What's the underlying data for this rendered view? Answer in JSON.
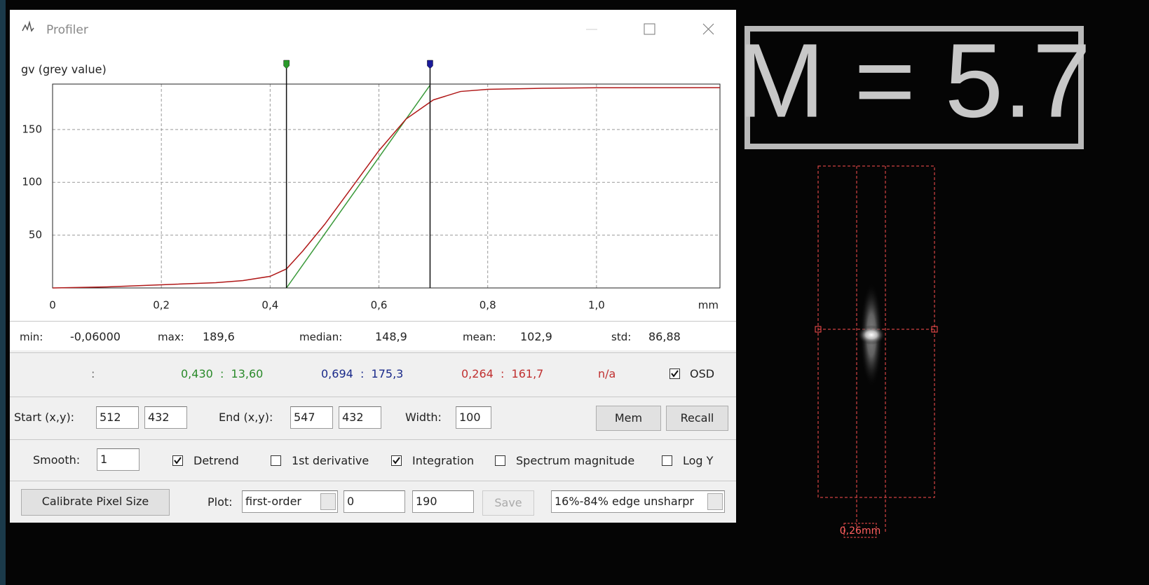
{
  "window": {
    "title": "Profiler"
  },
  "chart_data": {
    "type": "line",
    "y_label": "gv (grey value)",
    "x_unit": "mm",
    "x": [
      0,
      0.1,
      0.2,
      0.3,
      0.35,
      0.4,
      0.43,
      0.46,
      0.5,
      0.55,
      0.6,
      0.65,
      0.7,
      0.75,
      0.8,
      0.9,
      1.0,
      1.227
    ],
    "series": [
      {
        "color": "#b01818",
        "values": [
          0,
          1,
          3,
          5,
          7,
          11,
          18,
          35,
          60,
          95,
          130,
          160,
          178,
          186,
          188,
          189,
          189.5,
          189.6
        ]
      }
    ],
    "fit_line": {
      "color": "#3a9a3a",
      "x": [
        0.43,
        0.694
      ],
      "values": [
        0,
        192
      ]
    },
    "markers": [
      {
        "x": 0.43,
        "color": "#2a9a2a"
      },
      {
        "x": 0.694,
        "color": "#1a1a9a"
      }
    ],
    "xlim": [
      0,
      1.227
    ],
    "ylim": [
      0,
      193
    ],
    "xticks": [
      0,
      {
        "value": 0.2,
        "label": "0,2"
      },
      {
        "value": 0.4,
        "label": "0,4"
      },
      {
        "value": 0.6,
        "label": "0,6"
      },
      {
        "value": 0.8,
        "label": "0,8"
      },
      {
        "value": 1.0,
        "label": "1,0"
      }
    ],
    "yticks": [
      50,
      100,
      150
    ],
    "grid": true
  },
  "stats": [
    {
      "label": "min:",
      "value": "-0,06000"
    },
    {
      "label": "max:",
      "value": "189,6"
    },
    {
      "label": "median:",
      "value": "148,9"
    },
    {
      "label": "mean:",
      "value": "102,9"
    },
    {
      "label": "std:",
      "value": "86,88"
    }
  ],
  "readout": [
    {
      "text": ":",
      "color": "#666666"
    },
    {
      "text": "0,430  :  13,60",
      "color": "#2a8a2a"
    },
    {
      "text": "0,694  :  175,3",
      "color": "#1a2a8a"
    },
    {
      "text": "0,264  :  161,7",
      "color": "#c03030"
    },
    {
      "text": "n/a",
      "color": "#c03030"
    }
  ],
  "osd": {
    "label": "OSD",
    "checked": true
  },
  "start": {
    "label": "Start (x,y):",
    "x": 512,
    "y": 432
  },
  "end": {
    "label": "End (x,y):",
    "x": 547,
    "y": 432
  },
  "width": {
    "label": "Width:",
    "value": 100
  },
  "buttons": {
    "mem": "Mem",
    "recall": "Recall",
    "calibrate": "Calibrate Pixel Size",
    "save": "Save"
  },
  "smooth": {
    "label": "Smooth:",
    "value": 1
  },
  "options": [
    {
      "label": "Detrend",
      "checked": true
    },
    {
      "label": "1st derivative",
      "checked": false
    },
    {
      "label": "Integration",
      "checked": true
    },
    {
      "label": "Spectrum magnitude",
      "checked": false
    },
    {
      "label": "Log Y",
      "checked": false
    }
  ],
  "plot": {
    "label": "Plot:",
    "mode": "first-order",
    "min": 0,
    "max": 190,
    "method": "16%-84% edge unsharpr"
  },
  "overlay": {
    "magnification": "M = 5.7",
    "width_label": "0,26mm"
  }
}
